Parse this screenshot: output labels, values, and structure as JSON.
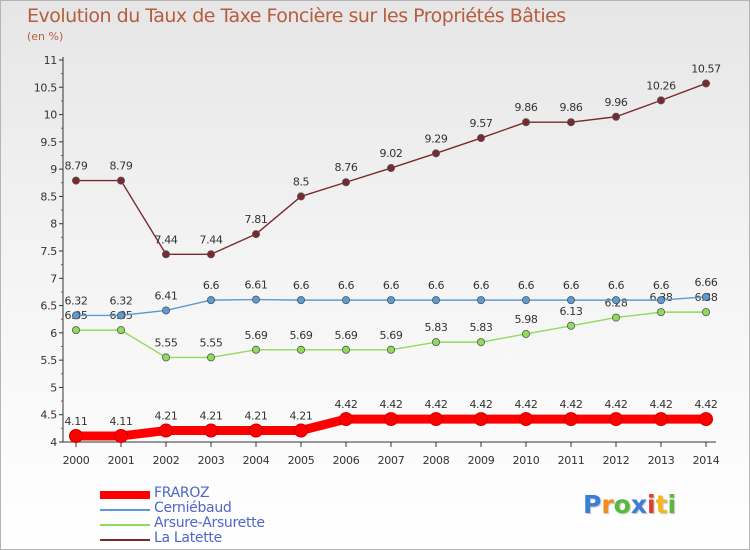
{
  "chart_data": {
    "type": "line",
    "title": "Evolution du Taux de Taxe Foncière sur les Propriétés Bâties",
    "ylabel": "(en %)",
    "x": [
      "2000",
      "2001",
      "2002",
      "2003",
      "2004",
      "2005",
      "2006",
      "2007",
      "2008",
      "2009",
      "2010",
      "2011",
      "2012",
      "2013",
      "2014"
    ],
    "ylim": [
      4,
      11
    ],
    "yticks": [
      "4",
      "4.5",
      "5",
      "5.5",
      "6",
      "6.5",
      "7",
      "7.5",
      "8",
      "8.5",
      "9",
      "9.5",
      "10",
      "10.5",
      "11"
    ],
    "series": [
      {
        "name": "FRAROZ",
        "color": "#ff0000",
        "values": [
          4.11,
          4.11,
          4.21,
          4.21,
          4.21,
          4.21,
          4.42,
          4.42,
          4.42,
          4.42,
          4.42,
          4.42,
          4.42,
          4.42,
          4.42
        ],
        "labels": [
          "4.11",
          "4.11",
          "4.21",
          "4.21",
          "4.21",
          "4.21",
          "4.42",
          "4.42",
          "4.42",
          "4.42",
          "4.42",
          "4.42",
          "4.42",
          "4.42",
          "4.42"
        ]
      },
      {
        "name": "Cerniébaud",
        "color": "#5b9bd5",
        "values": [
          6.32,
          6.32,
          6.41,
          6.6,
          6.61,
          6.6,
          6.6,
          6.6,
          6.6,
          6.6,
          6.6,
          6.6,
          6.6,
          6.6,
          6.66
        ],
        "labels": [
          "6.32",
          "6.32",
          "6.41",
          "6.6",
          "6.61",
          "6.6",
          "6.6",
          "6.6",
          "6.6",
          "6.6",
          "6.6",
          "6.6",
          "6.6",
          "6.6",
          "6.66"
        ]
      },
      {
        "name": "Arsure-Arsurette",
        "color": "#8fdb5a",
        "values": [
          6.05,
          6.05,
          5.55,
          5.55,
          5.69,
          5.69,
          5.69,
          5.69,
          5.83,
          5.83,
          5.98,
          6.13,
          6.28,
          6.38,
          6.38
        ],
        "labels": [
          "6.05",
          "6.05",
          "5.55",
          "5.55",
          "5.69",
          "5.69",
          "5.69",
          "5.69",
          "5.83",
          "5.83",
          "5.98",
          "6.13",
          "6.28",
          "6.38",
          "6.38"
        ]
      },
      {
        "name": "La Latette",
        "color": "#7a2a2e",
        "values": [
          8.79,
          8.79,
          7.44,
          7.44,
          7.81,
          8.5,
          8.76,
          9.02,
          9.29,
          9.57,
          9.86,
          9.86,
          9.96,
          10.26,
          10.57
        ],
        "labels": [
          "8.79",
          "8.79",
          "7.44",
          "7.44",
          "7.81",
          "8.5",
          "8.76",
          "9.02",
          "9.29",
          "9.57",
          "9.86",
          "9.86",
          "9.96",
          "10.26",
          "10.57"
        ]
      }
    ],
    "legend": [
      "FRAROZ",
      "Cerniébaud",
      "Arsure-Arsurette",
      "La Latette"
    ],
    "legend_position": "bottom-left",
    "grid": false
  },
  "logo": {
    "text": "Proxiti",
    "letters": [
      "P",
      "r",
      "o",
      "x",
      "i",
      "t",
      "i"
    ],
    "colors": [
      "#3a7fd5",
      "#f08c1e",
      "#5cb83c",
      "#3a7fd5",
      "#e23c2e",
      "#f0b81e",
      "#5cb83c"
    ]
  },
  "colors": {
    "title": "#b85c3e",
    "legend_text": "#4e66c8",
    "axis": "#333333"
  }
}
